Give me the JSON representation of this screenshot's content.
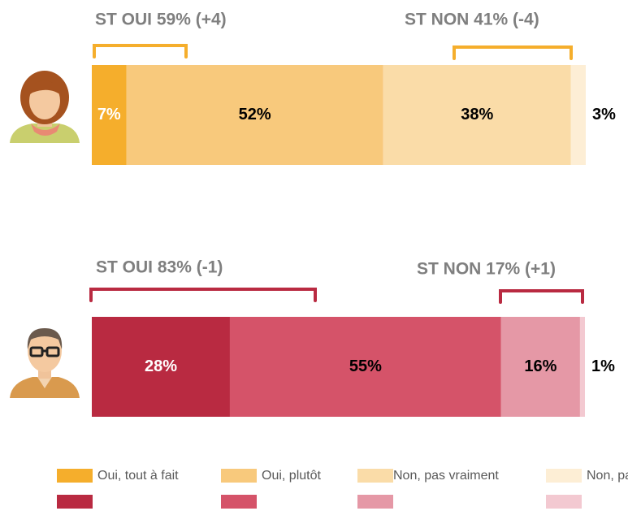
{
  "chart_data": [
    {
      "type": "stacked-bar",
      "xlim": [
        0,
        100
      ],
      "values": [
        7,
        52,
        38,
        3
      ],
      "value_labels": [
        "7%",
        "52%",
        "38%",
        "3%"
      ],
      "colors": [
        "#f5ae2c",
        "#f8c97c",
        "#fadca8",
        "#fdeed5"
      ],
      "annotations": [
        "ST OUI 59% (+4)",
        "ST NON 41% (-4)"
      ]
    },
    {
      "type": "stacked-bar",
      "xlim": [
        0,
        100
      ],
      "values": [
        28,
        55,
        16,
        1
      ],
      "value_labels": [
        "28%",
        "55%",
        "16%",
        "1%"
      ],
      "colors": [
        "#b92a41",
        "#d55369",
        "#e598a6",
        "#f3c9d1"
      ],
      "annotations": [
        "ST OUI 83% (-1)",
        "ST NON 17% (+1)"
      ]
    }
  ],
  "legend": {
    "labels": [
      "Oui, tout à fait",
      "Oui, plutôt",
      "Non, pas vraiment",
      "Non, pas du tout"
    ]
  }
}
